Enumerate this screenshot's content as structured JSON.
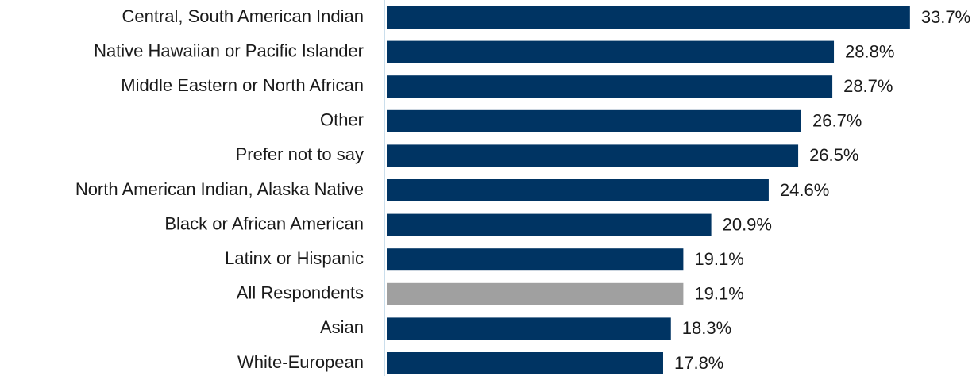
{
  "chart_data": {
    "type": "bar",
    "orientation": "horizontal",
    "categories": [
      "Central, South American Indian",
      "Native Hawaiian or Pacific Islander",
      "Middle Eastern or North African",
      "Other",
      "Prefer not to say",
      "North American Indian, Alaska Native",
      "Black or African American",
      "Latinx or Hispanic",
      "All Respondents",
      "Asian",
      "White-European"
    ],
    "values": [
      33.7,
      28.8,
      28.7,
      26.7,
      26.5,
      24.6,
      20.9,
      19.1,
      19.1,
      18.3,
      17.8
    ],
    "value_labels": [
      "33.7%",
      "28.8%",
      "28.7%",
      "26.7%",
      "26.5%",
      "24.6%",
      "20.9%",
      "19.1%",
      "19.1%",
      "18.3%",
      "17.8%"
    ],
    "colors": [
      "#003463",
      "#003463",
      "#003463",
      "#003463",
      "#003463",
      "#003463",
      "#003463",
      "#003463",
      "#a0a0a0",
      "#003463",
      "#003463"
    ]
  }
}
